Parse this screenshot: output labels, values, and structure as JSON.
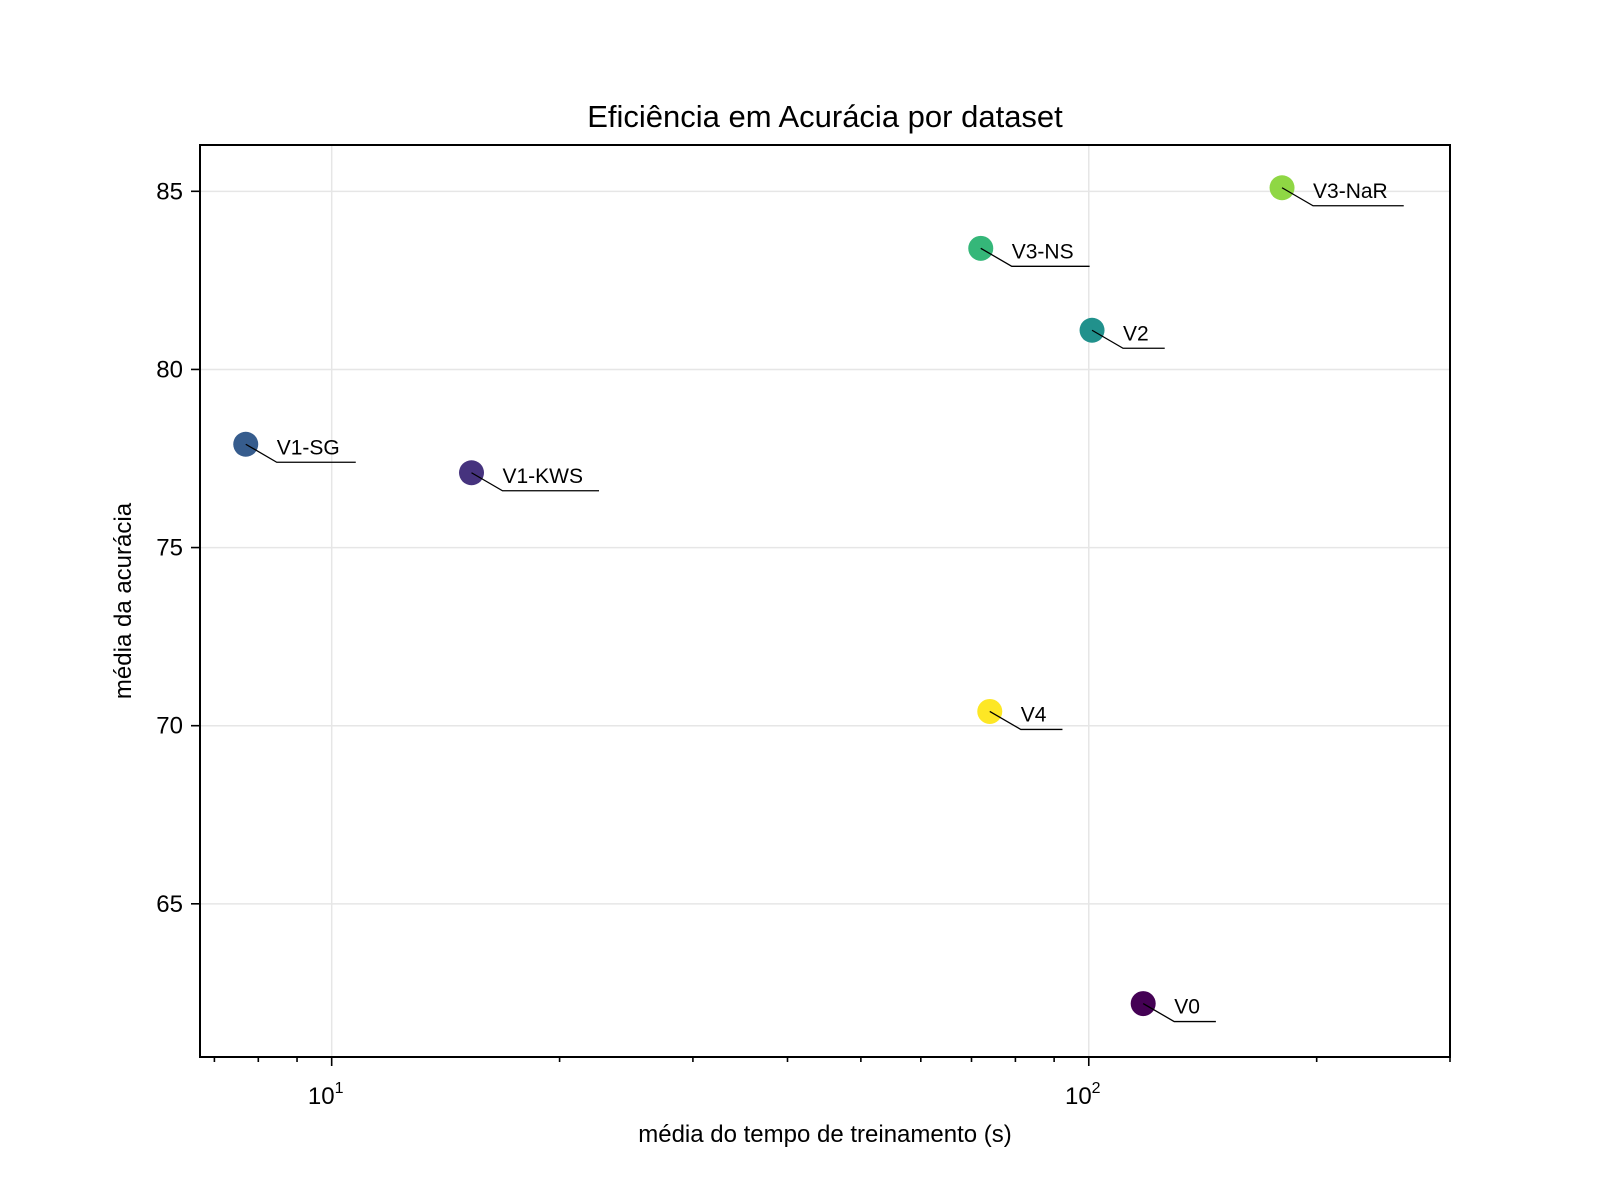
{
  "chart_data": {
    "type": "scatter",
    "title": "Eficiência em Acurácia por dataset",
    "xlabel": "média do tempo de treinamento (s)",
    "ylabel": "média da acurácia",
    "xscale": "log",
    "xlim": [
      6.7,
      300
    ],
    "ylim": [
      60.7,
      86.3
    ],
    "xticks": [
      10,
      100
    ],
    "xtick_labels": [
      {
        "base": "10",
        "exp": "1"
      },
      {
        "base": "10",
        "exp": "2"
      }
    ],
    "yticks": [
      65,
      70,
      75,
      80,
      85
    ],
    "grid": true,
    "points": [
      {
        "label": "V0",
        "x": 118,
        "y": 62.2,
        "color": "#440154"
      },
      {
        "label": "V1-KWS",
        "x": 15.3,
        "y": 77.1,
        "color": "#46337e"
      },
      {
        "label": "V1-SG",
        "x": 7.7,
        "y": 77.9,
        "color": "#365c8d"
      },
      {
        "label": "V2",
        "x": 101,
        "y": 81.1,
        "color": "#21918c"
      },
      {
        "label": "V3-NS",
        "x": 72,
        "y": 83.4,
        "color": "#35b779"
      },
      {
        "label": "V3-NaR",
        "x": 180,
        "y": 85.1,
        "color": "#8fd744"
      },
      {
        "label": "V4",
        "x": 74,
        "y": 70.4,
        "color": "#fde725"
      }
    ]
  }
}
